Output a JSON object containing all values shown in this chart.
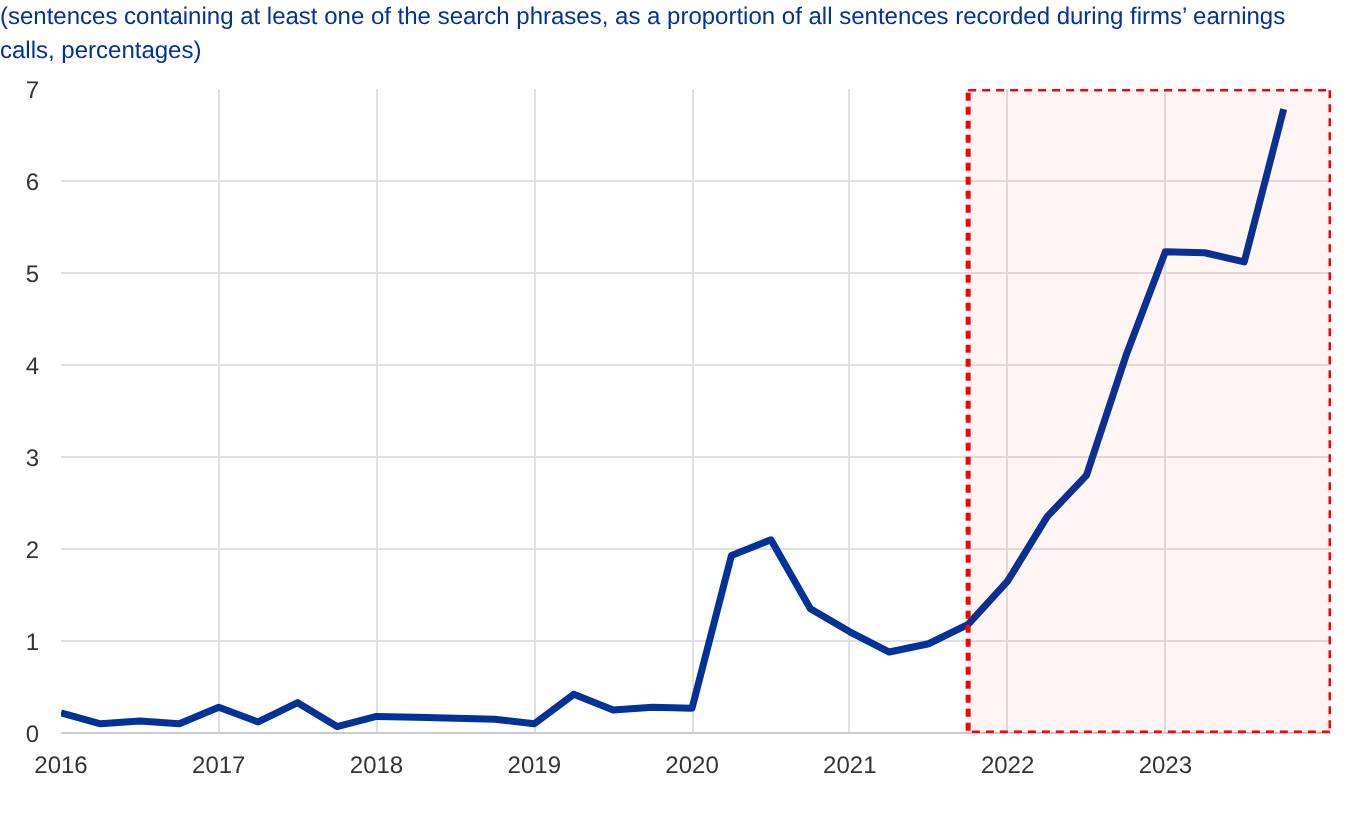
{
  "chart_data": {
    "type": "line",
    "subtitle": "(sentences containing at least one of the search phrases, as a proportion of all sentences recorded during firms’ earnings calls, percentages)",
    "x": [
      2016,
      2016.25,
      2016.5,
      2016.75,
      2017,
      2017.25,
      2017.5,
      2017.75,
      2018,
      2018.25,
      2018.5,
      2018.75,
      2019,
      2019.25,
      2019.5,
      2019.75,
      2020,
      2020.25,
      2020.5,
      2020.75,
      2021,
      2021.25,
      2021.5,
      2021.75,
      2022,
      2022.25,
      2022.5,
      2022.75,
      2023,
      2023.25,
      2023.5,
      2023.75
    ],
    "series": [
      {
        "color": "#003299",
        "values": [
          0.22,
          0.1,
          0.13,
          0.1,
          0.28,
          0.12,
          0.33,
          0.07,
          0.18,
          0.17,
          0.16,
          0.15,
          0.1,
          0.42,
          0.25,
          0.28,
          0.27,
          1.93,
          2.1,
          1.35,
          1.1,
          0.88,
          0.97,
          1.18,
          1.65,
          2.35,
          2.8,
          4.1,
          5.23,
          5.22,
          5.12,
          6.78
        ]
      }
    ],
    "xlim": [
      2016,
      2024.05
    ],
    "xticks": [
      2016,
      2017,
      2018,
      2019,
      2020,
      2021,
      2022,
      2023
    ],
    "ylim": [
      0,
      7
    ],
    "yticks": [
      0,
      1,
      2,
      3,
      4,
      5,
      6,
      7
    ],
    "grid": true,
    "bands": [
      {
        "axis": "x",
        "from": 2021.75,
        "to": 2024.05,
        "color": "#ff0000"
      }
    ]
  }
}
